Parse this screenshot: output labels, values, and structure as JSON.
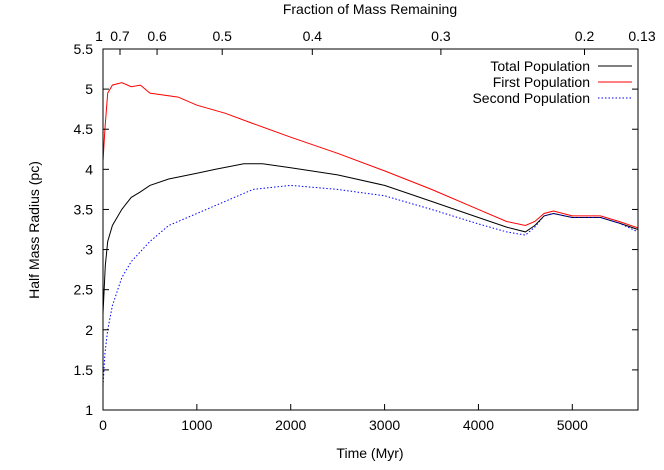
{
  "chart_data": {
    "type": "line",
    "title": "",
    "xlabel": "Time (Myr)",
    "ylabel": "Half Mass Radius (pc)",
    "x2label": "Fraction of Mass Remaining",
    "xlim": [
      0,
      5700
    ],
    "ylim": [
      1,
      5.5
    ],
    "xticks": [
      0,
      1000,
      2000,
      3000,
      4000,
      5000
    ],
    "yticks": [
      1,
      1.5,
      2,
      2.5,
      3,
      3.5,
      4,
      4.5,
      5,
      5.5
    ],
    "x2ticks": [
      {
        "label": "1",
        "time": 0
      },
      {
        "label": "0.7",
        "time": 181
      },
      {
        "label": "0.6",
        "time": 576
      },
      {
        "label": "0.5",
        "time": 1270
      },
      {
        "label": "0.4",
        "time": 2230
      },
      {
        "label": "0.3",
        "time": 3600
      },
      {
        "label": "0.2",
        "time": 5130
      },
      {
        "label": "0.13",
        "time": 5700
      }
    ],
    "grid": false,
    "legend_position": "top-right",
    "series": [
      {
        "name": "Total Population",
        "color": "#000000",
        "dash": "solid",
        "x": [
          0,
          25,
          50,
          100,
          200,
          300,
          400,
          500,
          700,
          1000,
          1200,
          1500,
          1700,
          2000,
          2500,
          3000,
          3500,
          4000,
          4300,
          4500,
          4600,
          4700,
          4800,
          5000,
          5300,
          5500,
          5700
        ],
        "y": [
          2.2,
          2.8,
          3.1,
          3.3,
          3.5,
          3.65,
          3.72,
          3.8,
          3.88,
          3.95,
          4.0,
          4.07,
          4.07,
          4.02,
          3.93,
          3.8,
          3.6,
          3.4,
          3.28,
          3.22,
          3.3,
          3.42,
          3.45,
          3.4,
          3.4,
          3.33,
          3.25
        ]
      },
      {
        "name": "First Population",
        "color": "#ff0000",
        "dash": "solid",
        "x": [
          0,
          20,
          50,
          100,
          200,
          300,
          400,
          500,
          800,
          1000,
          1300,
          1600,
          2000,
          2500,
          3000,
          3500,
          4000,
          4300,
          4500,
          4600,
          4700,
          4800,
          5000,
          5300,
          5500,
          5700
        ],
        "y": [
          4.1,
          4.5,
          4.95,
          5.05,
          5.08,
          5.03,
          5.05,
          4.95,
          4.9,
          4.8,
          4.7,
          4.57,
          4.4,
          4.2,
          3.98,
          3.75,
          3.5,
          3.35,
          3.3,
          3.35,
          3.45,
          3.48,
          3.42,
          3.42,
          3.35,
          3.27
        ]
      },
      {
        "name": "Second Population",
        "color": "#0000ff",
        "dash": "dotted",
        "x": [
          0,
          20,
          50,
          100,
          200,
          300,
          500,
          700,
          1000,
          1300,
          1600,
          2000,
          2500,
          3000,
          3500,
          4000,
          4300,
          4500,
          4600,
          4700,
          4800,
          5000,
          5300,
          5500,
          5700
        ],
        "y": [
          1.3,
          1.7,
          2.0,
          2.3,
          2.65,
          2.85,
          3.1,
          3.3,
          3.45,
          3.6,
          3.75,
          3.8,
          3.75,
          3.67,
          3.5,
          3.32,
          3.22,
          3.18,
          3.28,
          3.42,
          3.45,
          3.4,
          3.4,
          3.33,
          3.22
        ]
      }
    ]
  }
}
